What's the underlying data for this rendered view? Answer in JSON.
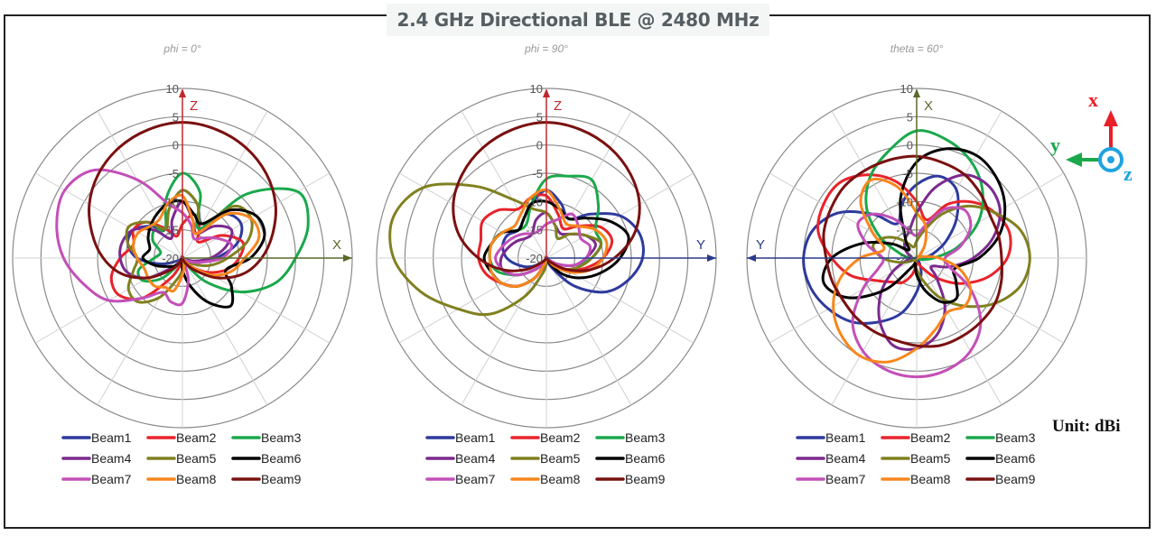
{
  "title": "2.4 GHz Directional BLE @ 2480 MHz",
  "unit_label": "Unit: dBi",
  "coordinate_icon": {
    "x_label": "x",
    "y_label": "y",
    "z_label": "z",
    "x_color": "#e8202a",
    "y_color": "#1aa84b",
    "z_color": "#1fa3e0"
  },
  "beam_colors": {
    "Beam1": "#2e3a9e",
    "Beam2": "#e8232a",
    "Beam3": "#1aa84b",
    "Beam4": "#7b2a8e",
    "Beam5": "#808020",
    "Beam6": "#000000",
    "Beam7": "#c34fb8",
    "Beam8": "#f7861d",
    "Beam9": "#7a1010"
  },
  "chart_data": [
    {
      "type": "polar",
      "title": "phi = 0°",
      "radial_ticks": [
        "10",
        "5",
        "0",
        "-5",
        "-10",
        "-15",
        "-20"
      ],
      "r_range": [
        -20,
        10
      ],
      "axis_labels": {
        "up": "Z",
        "right": "X"
      },
      "angles_deg": [
        0,
        15,
        30,
        45,
        60,
        75,
        90,
        105,
        120,
        135,
        150,
        165,
        180,
        195,
        210,
        225,
        240,
        255,
        270,
        285,
        300,
        315,
        330,
        345
      ],
      "grid": true,
      "legend_position": "bottom",
      "series": [
        {
          "name": "Beam1",
          "values": [
            -8,
            -10,
            -13,
            -9,
            -8,
            -10,
            -14,
            -17,
            -19,
            -20,
            -20,
            -20,
            -20,
            -20,
            -20,
            -20,
            -19,
            -16,
            -12,
            -10,
            -10,
            -12,
            -14,
            -11
          ]
        },
        {
          "name": "Beam2",
          "values": [
            -14,
            -12,
            -14,
            -16,
            -12,
            -9,
            -10,
            -12,
            -15,
            -18,
            -20,
            -20,
            -20,
            -19,
            -16,
            -10,
            -7,
            -7,
            -9,
            -11,
            -10,
            -11,
            -14,
            -16
          ]
        },
        {
          "name": "Beam3",
          "values": [
            -5,
            -8,
            -14,
            -4,
            3.5,
            3,
            0,
            -3,
            -8,
            -14,
            -19,
            -20,
            -20,
            -20,
            -19,
            -15,
            -12,
            -12,
            -15,
            -16,
            -14,
            -13,
            -14,
            -9
          ]
        },
        {
          "name": "Beam4",
          "values": [
            -10,
            -13,
            -15,
            -12,
            -10,
            -12,
            -15,
            -18,
            -20,
            -20,
            -20,
            -20,
            -20,
            -20,
            -20,
            -18,
            -13,
            -10,
            -9,
            -9,
            -10,
            -13,
            -16,
            -13
          ]
        },
        {
          "name": "Beam5",
          "values": [
            -8,
            -10,
            -13,
            -7,
            -6,
            -8,
            -12,
            -15,
            -18,
            -20,
            -20,
            -20,
            -18,
            -16,
            -12,
            -9,
            -9,
            -11,
            -12,
            -10,
            -9,
            -11,
            -14,
            -11
          ]
        },
        {
          "name": "Beam6",
          "values": [
            -10,
            -12,
            -13,
            -8,
            -5,
            -5,
            -8,
            -12,
            -10,
            -8,
            -11,
            -15,
            -18,
            -20,
            -19,
            -18,
            -17,
            -15,
            -13,
            -14,
            -13,
            -12,
            -11,
            -10
          ]
        },
        {
          "name": "Beam7",
          "values": [
            -12,
            -14,
            -16,
            -15,
            -13,
            -11,
            -13,
            -17,
            -19,
            -20,
            -20,
            -16,
            -12,
            -12,
            -13,
            -10,
            -5,
            -2,
            1,
            3,
            4,
            2,
            -4,
            -10
          ]
        },
        {
          "name": "Beam8",
          "values": [
            -9,
            -13,
            -15,
            -9,
            -6,
            -6,
            -9,
            -11,
            -14,
            -18,
            -20,
            -19,
            -17,
            -14,
            -14,
            -13,
            -13,
            -13,
            -12,
            -11,
            -11,
            -12,
            -12,
            -10
          ]
        },
        {
          "name": "Beam9",
          "values": [
            4,
            3.5,
            2.5,
            1,
            -1,
            -3.5,
            -6,
            -9,
            -13,
            -17,
            -19,
            -20,
            -20,
            -20,
            -19,
            -17,
            -13,
            -9,
            -6,
            -3.5,
            -1,
            1,
            2.5,
            3.5
          ]
        }
      ]
    },
    {
      "type": "polar",
      "title": "phi = 90°",
      "radial_ticks": [
        "10",
        "5",
        "0",
        "-5",
        "-10",
        "-15",
        "-20"
      ],
      "r_range": [
        -20,
        10
      ],
      "axis_labels": {
        "up": "Z",
        "right": "Y"
      },
      "angles_deg": [
        0,
        15,
        30,
        45,
        60,
        75,
        90,
        105,
        120,
        135,
        150,
        165,
        180,
        195,
        210,
        225,
        240,
        255,
        270,
        285,
        300,
        315,
        330,
        345
      ],
      "grid": true,
      "legend_position": "bottom",
      "series": [
        {
          "name": "Beam1",
          "values": [
            -8,
            -10,
            -12,
            -9,
            -5,
            -3,
            -3,
            -5,
            -8,
            -13,
            -18,
            -20,
            -20,
            -20,
            -20,
            -19,
            -17,
            -15,
            -13,
            -12,
            -12,
            -13,
            -12,
            -10
          ]
        },
        {
          "name": "Beam2",
          "values": [
            -9,
            -12,
            -14,
            -12,
            -9,
            -8,
            -10,
            -13,
            -16,
            -19,
            -20,
            -20,
            -20,
            -19,
            -16,
            -13,
            -11,
            -9,
            -8,
            -8,
            -7,
            -8,
            -10,
            -9
          ]
        },
        {
          "name": "Beam3",
          "values": [
            -6,
            -5,
            -4,
            -7,
            -10,
            -10,
            -12,
            -15,
            -18,
            -20,
            -20,
            -20,
            -20,
            -20,
            -19,
            -17,
            -14,
            -11,
            -10,
            -10,
            -11,
            -13,
            -13,
            -10
          ]
        },
        {
          "name": "Beam4",
          "values": [
            -12,
            -14,
            -15,
            -14,
            -12,
            -11,
            -13,
            -15,
            -18,
            -20,
            -20,
            -20,
            -20,
            -20,
            -19,
            -17,
            -14,
            -12,
            -12,
            -13,
            -14,
            -15,
            -15,
            -13
          ]
        },
        {
          "name": "Beam5",
          "values": [
            -12,
            -14,
            -16,
            -14,
            -12,
            -10,
            -12,
            -14,
            -16,
            -18,
            -20,
            -20,
            -19,
            -17,
            -12,
            -6,
            -2,
            3,
            7,
            8,
            5,
            -2,
            -8,
            -11
          ]
        },
        {
          "name": "Beam6",
          "values": [
            -10,
            -11,
            -12,
            -10,
            -7,
            -5,
            -7,
            -10,
            -13,
            -16,
            -19,
            -20,
            -20,
            -19,
            -16,
            -13,
            -11,
            -10,
            -9,
            -10,
            -11,
            -13,
            -12,
            -10
          ]
        },
        {
          "name": "Beam7",
          "values": [
            -14,
            -13,
            -11,
            -12,
            -13,
            -12,
            -13,
            -15,
            -18,
            -20,
            -20,
            -20,
            -20,
            -20,
            -19,
            -17,
            -14,
            -12,
            -11,
            -12,
            -13,
            -14,
            -15,
            -15
          ]
        },
        {
          "name": "Beam8",
          "values": [
            -8,
            -11,
            -13,
            -12,
            -10,
            -9,
            -10,
            -12,
            -15,
            -18,
            -20,
            -20,
            -20,
            -19,
            -16,
            -13,
            -11,
            -10,
            -10,
            -10,
            -11,
            -12,
            -11,
            -9
          ]
        },
        {
          "name": "Beam9",
          "values": [
            4,
            3.5,
            2.5,
            1,
            -1,
            -4,
            -8,
            -12,
            -16,
            -19,
            -20,
            -20,
            -20,
            -20,
            -20,
            -19,
            -16,
            -12,
            -8,
            -4,
            -1,
            1,
            2.5,
            3.5
          ]
        }
      ]
    },
    {
      "type": "polar",
      "title": "theta = 60°",
      "radial_ticks": [
        "10",
        "5",
        "0",
        "-5",
        "-10",
        "-15",
        "-20"
      ],
      "r_range": [
        -20,
        10
      ],
      "axis_labels": {
        "up": "X",
        "left": "Y"
      },
      "angles_deg": [
        0,
        15,
        30,
        45,
        60,
        75,
        90,
        105,
        120,
        135,
        150,
        165,
        180,
        195,
        210,
        225,
        240,
        255,
        270,
        285,
        300,
        315,
        330,
        345
      ],
      "grid": true,
      "legend_position": "bottom",
      "series": [
        {
          "name": "Beam1",
          "values": [
            -7,
            -5,
            -6,
            -10,
            -14,
            -17,
            -19,
            -20,
            -20,
            -20,
            -19,
            -17,
            -14,
            -10,
            -7,
            -4,
            -2,
            -0.5,
            0,
            -1,
            -4,
            -9,
            -13,
            -10
          ]
        },
        {
          "name": "Beam2",
          "values": [
            -10,
            -13,
            -9,
            -6,
            -4,
            -3,
            -4,
            -7,
            -11,
            -15,
            -18,
            -19,
            -19,
            -17,
            -15,
            -14,
            -12,
            -8,
            -5,
            -2,
            -1,
            -1,
            -3,
            -6
          ]
        },
        {
          "name": "Beam3",
          "values": [
            2.5,
            1.5,
            -0.5,
            -3.5,
            -7.5,
            -12.5,
            -17,
            -19,
            -20,
            -20,
            -20,
            -20,
            -20,
            -20,
            -20,
            -20,
            -20,
            -20,
            -19,
            -17,
            -12.5,
            -7.5,
            -3.5,
            -0.5
          ]
        },
        {
          "name": "Beam4",
          "values": [
            -12,
            -7,
            -3,
            -2,
            -3,
            -6,
            -10,
            -14,
            -17,
            -15,
            -10,
            -6,
            -4,
            -4,
            -7,
            -11,
            -15,
            -18,
            -19,
            -19,
            -18,
            -17,
            -16,
            -15
          ]
        },
        {
          "name": "Beam5",
          "values": [
            -17,
            -15,
            -11,
            -7,
            -4,
            -1,
            0,
            -1,
            -4,
            -8,
            -12,
            -16,
            -18,
            -19,
            -20,
            -20,
            -19,
            -17,
            -14,
            -12,
            -13,
            -15,
            -17,
            -18
          ]
        },
        {
          "name": "Beam6",
          "values": [
            -3,
            0,
            1,
            0,
            -2,
            -5,
            -9,
            -13,
            -12,
            -10,
            -11,
            -14,
            -17,
            -19,
            -18,
            -12,
            -6,
            -3,
            -5,
            -10,
            -15,
            -18,
            -16,
            -9
          ]
        },
        {
          "name": "Beam7",
          "values": [
            -16,
            -14,
            -10,
            -8,
            -9,
            -12,
            -15,
            -14,
            -9,
            -4,
            -1,
            0.5,
            1,
            0.5,
            -1,
            -4,
            -9,
            -13,
            -14,
            -11,
            -8,
            -9,
            -12,
            -15
          ]
        },
        {
          "name": "Beam8",
          "values": [
            -12,
            -14,
            -17,
            -19,
            -20,
            -19,
            -16,
            -12,
            -9,
            -8,
            -9,
            -7,
            -4,
            -1,
            0,
            -1,
            -3,
            -6,
            -10,
            -14,
            -11,
            -6,
            -4,
            -7
          ]
        },
        {
          "name": "Beam9",
          "values": [
            -2,
            -2.5,
            -3,
            -4,
            -5,
            -5,
            -5,
            -4.5,
            -4,
            -4,
            -4,
            -4,
            -4.5,
            -5,
            -5,
            -5,
            -5,
            -4.5,
            -4,
            -3,
            -2.5,
            -2,
            -2,
            -2
          ]
        }
      ]
    }
  ]
}
